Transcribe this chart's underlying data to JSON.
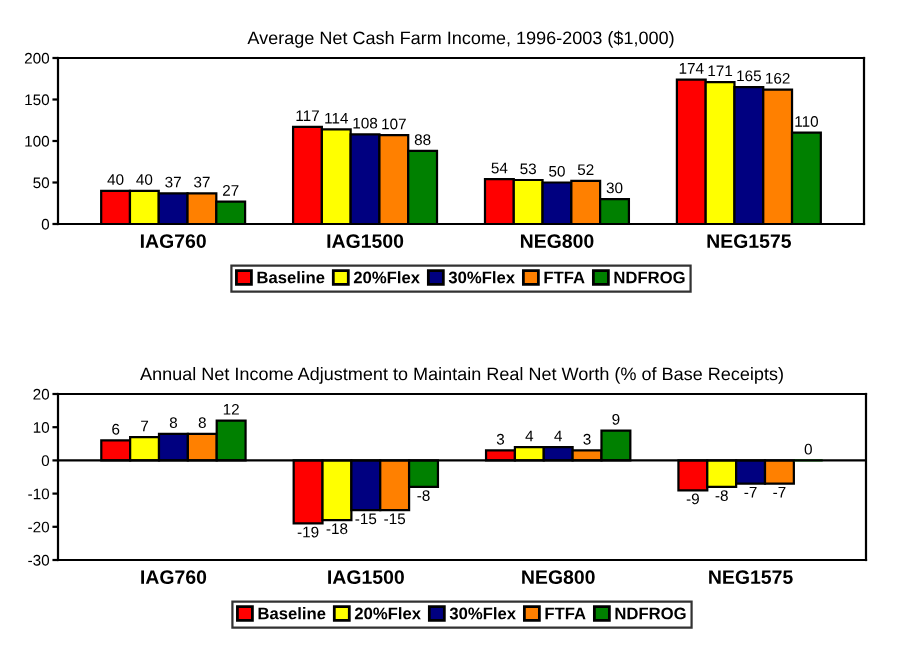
{
  "chart_data": [
    {
      "type": "bar",
      "title": "Average Net Cash Farm Income, 1996-2003 ($1,000)",
      "categories": [
        "IAG760",
        "IAG1500",
        "NEG800",
        "NEG1575"
      ],
      "series": [
        {
          "name": "Baseline",
          "color": "#ff0000",
          "values": [
            40,
            117,
            54,
            174
          ]
        },
        {
          "name": "20%Flex",
          "color": "#ffff00",
          "values": [
            40,
            114,
            53,
            171
          ]
        },
        {
          "name": "30%Flex",
          "color": "#000080",
          "values": [
            37,
            108,
            50,
            165
          ]
        },
        {
          "name": "FTFA",
          "color": "#ff8000",
          "values": [
            37,
            107,
            52,
            162
          ]
        },
        {
          "name": "NDFROG",
          "color": "#008000",
          "values": [
            27,
            88,
            30,
            110
          ]
        }
      ],
      "ylim": [
        0,
        200
      ],
      "yticks": [
        0,
        50,
        100,
        150,
        200
      ],
      "data_labels": true,
      "legend": "bottom",
      "grid": false
    },
    {
      "type": "bar",
      "title": "Annual Net Income Adjustment to Maintain Real Net Worth (% of Base Receipts)",
      "categories": [
        "IAG760",
        "IAG1500",
        "NEG800",
        "NEG1575"
      ],
      "series": [
        {
          "name": "Baseline",
          "color": "#ff0000",
          "values": [
            6,
            -19,
            3,
            -9
          ]
        },
        {
          "name": "20%Flex",
          "color": "#ffff00",
          "values": [
            7,
            -18,
            4,
            -8
          ]
        },
        {
          "name": "30%Flex",
          "color": "#000080",
          "values": [
            8,
            -15,
            4,
            -7
          ]
        },
        {
          "name": "FTFA",
          "color": "#ff8000",
          "values": [
            8,
            -15,
            3,
            -7
          ]
        },
        {
          "name": "NDFROG",
          "color": "#008000",
          "values": [
            12,
            -8,
            9,
            0
          ]
        }
      ],
      "ref_lines": [
        {
          "axis": "y",
          "value": 0,
          "color": "#000000"
        }
      ],
      "ylim": [
        -30,
        20
      ],
      "yticks": [
        -30,
        -20,
        -10,
        0,
        10,
        20
      ],
      "data_labels": true,
      "legend": "bottom",
      "grid": false
    }
  ]
}
